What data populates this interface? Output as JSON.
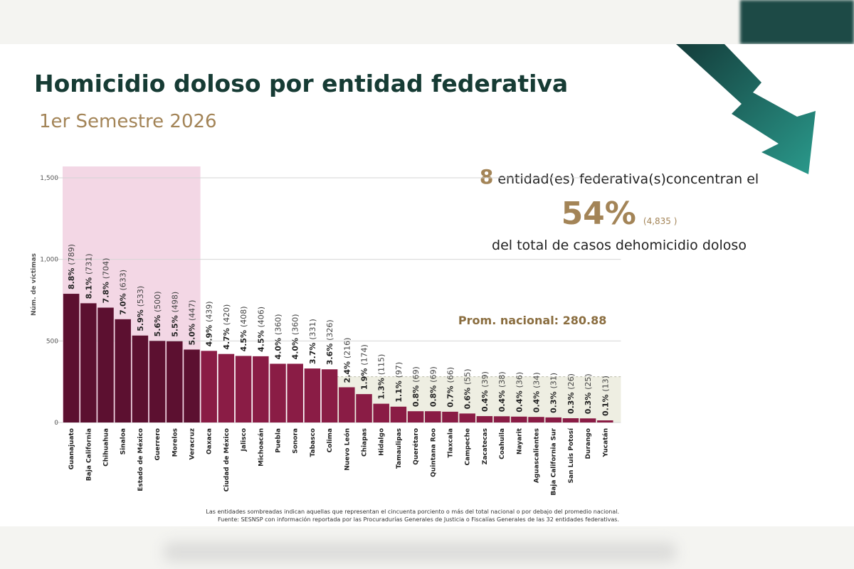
{
  "header": {
    "title": "Homicidio doloso por entidad federativa",
    "subtitle": "1er Semestre 2026"
  },
  "callout": {
    "count": "8",
    "text_line1": "entidad(es) federativa(s)concentran el",
    "percent": "54%",
    "absolute": "(4,835 )",
    "text_line3": "del total de casos dehomicidio doloso"
  },
  "footnote": {
    "line1": "Las entidades sombreadas indican aquellas que representan el cincuenta porciento o más del total nacional o por debajo del promedio nacional.",
    "line2": "Fuente: SESNSP con información reportada por las Procuradurías Generales de Justicia o Fiscalías Generales de las 32 entidades federativas."
  },
  "colors": {
    "dark_bar": "#5c1030",
    "bar": "#8a1c45",
    "highlight_top": "#f3d7e5",
    "highlight_below_avg": "#eeeee2",
    "title": "#163b34",
    "gold": "#a38457",
    "avg_label": "#8a6d3f",
    "arrow": "#1d5a54"
  },
  "chart_data": {
    "type": "bar",
    "ylabel": "Núm. de víctimas",
    "ylim": [
      0,
      1500
    ],
    "yticks": [
      0,
      500,
      1000,
      1500
    ],
    "ytick_labels": [
      "0",
      "500",
      "1,000",
      "1,500"
    ],
    "average": 280.88,
    "average_label": "Prom. nacional: 280.88",
    "highlight_top_count": 8,
    "categories": [
      "Guanajuato",
      "Baja California",
      "Chihuahua",
      "Sinaloa",
      "Estado de México",
      "Guerrero",
      "Morelos",
      "Veracruz",
      "Oaxaca",
      "Ciudad de México",
      "Jalisco",
      "Michoacán",
      "Puebla",
      "Sonora",
      "Tabasco",
      "Colima",
      "Nuevo León",
      "Chiapas",
      "Hidalgo",
      "Tamaulipas",
      "Querétaro",
      "Quintana Roo",
      "Tlaxcala",
      "Campeche",
      "Zacatecas",
      "Coahuila",
      "Nayarit",
      "Aguascalientes",
      "Baja California Sur",
      "San Luis Potosí",
      "Durango",
      "Yucatán"
    ],
    "values": [
      789,
      731,
      704,
      633,
      533,
      500,
      498,
      447,
      439,
      420,
      408,
      406,
      360,
      360,
      331,
      326,
      216,
      174,
      115,
      97,
      69,
      69,
      66,
      55,
      39,
      38,
      36,
      34,
      31,
      26,
      25,
      13
    ],
    "percent_labels": [
      "8.8%",
      "8.1%",
      "7.8%",
      "7.0%",
      "5.9%",
      "5.6%",
      "5.5%",
      "5.0%",
      "4.9%",
      "4.7%",
      "4.5%",
      "4.5%",
      "4.0%",
      "4.0%",
      "3.7%",
      "3.6%",
      "2.4%",
      "1.9%",
      "1.3%",
      "1.1%",
      "0.8%",
      "0.8%",
      "0.7%",
      "0.6%",
      "0.4%",
      "0.4%",
      "0.4%",
      "0.4%",
      "0.3%",
      "0.3%",
      "0.3%",
      "0.1%"
    ],
    "count_labels": [
      "(789)",
      "(731)",
      "(704)",
      "(633)",
      "(533)",
      "(500)",
      "(498)",
      "(447)",
      "(439)",
      "(420)",
      "(408)",
      "(406)",
      "(360)",
      "(360)",
      "(331)",
      "(326)",
      "(216)",
      "(174)",
      "(115)",
      "(97)",
      "(69)",
      "(69)",
      "(66)",
      "(55)",
      "(39)",
      "(38)",
      "(36)",
      "(34)",
      "(31)",
      "(26)",
      "(25)",
      "(13)"
    ]
  }
}
